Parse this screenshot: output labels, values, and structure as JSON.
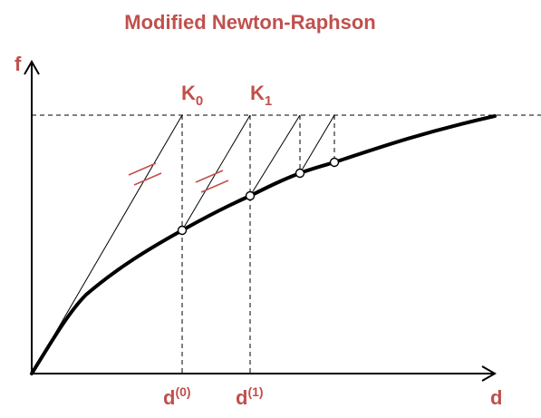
{
  "title": "Modified Newton-Raphson",
  "axes": {
    "y_label": "f",
    "x_label": "d"
  },
  "stiffness_labels": [
    {
      "base": "K",
      "sub": "0"
    },
    {
      "base": "K",
      "sub": "1"
    }
  ],
  "displacement_labels": [
    {
      "base": "d",
      "sup": "(0)"
    },
    {
      "base": "d",
      "sup": "(1)"
    }
  ],
  "colors": {
    "accent": "#c0504d",
    "ink": "#000000",
    "background": "#ffffff"
  }
}
